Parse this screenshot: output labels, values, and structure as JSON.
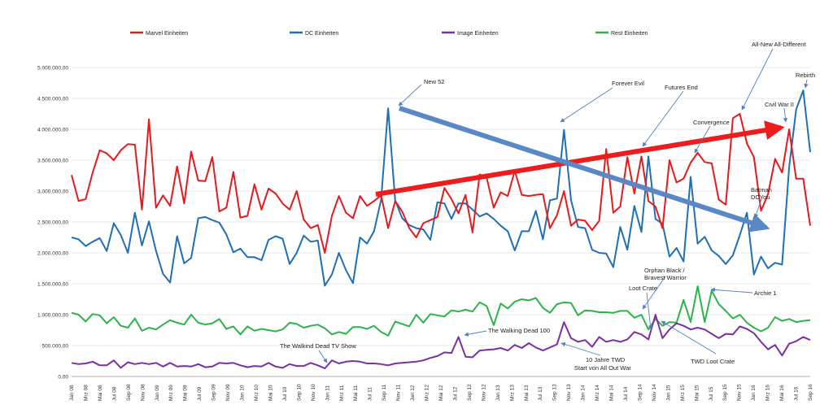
{
  "chart_data": {
    "type": "line",
    "title": "",
    "xlabel": "",
    "ylabel": "",
    "ylim": [
      0,
      5000000
    ],
    "yticks": [
      "0,00",
      "500.000,00",
      "1.000.000,00",
      "1.500.000,00",
      "2.000.000,00",
      "2.500.000,00",
      "3.000.000,00",
      "3.500.000,00",
      "4.000.000,00",
      "4.500.000,00",
      "5.000.000,00"
    ],
    "ytick_values": [
      0,
      500000,
      1000000,
      1500000,
      2000000,
      2500000,
      3000000,
      3500000,
      4000000,
      4500000,
      5000000
    ],
    "grid": "horizontal",
    "legend_position": "top",
    "x_tick_labels": [
      "Jan 08",
      "Mrz 08",
      "Mai 08",
      "Jul 08",
      "Sep 08",
      "Nov 08",
      "Jan 09",
      "Mrz 09",
      "Mai 09",
      "Jul 09",
      "Sep 09",
      "Nov 09",
      "Jan 10",
      "Mrz 10",
      "Mai 10",
      "Jul 10",
      "Sep 10",
      "Nov 10",
      "Jan 11",
      "Mrz 11",
      "Mai 11",
      "Jul 11",
      "Sep 11",
      "Nov 11",
      "Jan 12",
      "Mrz 12",
      "Mai 12",
      "Jul 12",
      "Sep 12",
      "Nov 12",
      "Jan 13",
      "Mrz 13",
      "Mai 13",
      "Jul 13",
      "Sep 13",
      "Nov 13",
      "Jan 14",
      "Mrz 14",
      "Mai 14",
      "Jul 14",
      "Sep 14",
      "Nov 14",
      "Jan 15",
      "Mrz 15",
      "Mai 15",
      "Jul 15",
      "Sep 15",
      "Nov 15",
      "Jan 16",
      "Mrz 16",
      "Mai 16",
      "Jul 16",
      "Sep 16"
    ],
    "series": [
      {
        "name": "Marvel Einheiten",
        "color": "#e41a1c",
        "values": [
          3260000,
          2840000,
          2870000,
          3300000,
          3660000,
          3610000,
          3500000,
          3660000,
          3760000,
          3750000,
          2700000,
          4160000,
          2730000,
          2930000,
          2760000,
          3400000,
          2800000,
          3640000,
          3170000,
          3160000,
          3550000,
          2670000,
          2730000,
          3310000,
          2570000,
          2600000,
          3110000,
          2700000,
          3040000,
          2960000,
          2800000,
          2700000,
          3000000,
          2540000,
          2400000,
          2450000,
          2000000,
          2600000,
          2920000,
          2650000,
          2560000,
          2920000,
          2760000,
          2840000,
          2930000,
          2400000,
          2840000,
          2670000,
          2400000,
          2250000,
          2480000,
          2530000,
          2580000,
          3050000,
          2870000,
          2640000,
          2940000,
          2330000,
          3270000,
          3220000,
          2730000,
          2980000,
          2920000,
          3330000,
          2940000,
          2920000,
          2940000,
          2950000,
          2400000,
          2610000,
          3000000,
          2440000,
          2540000,
          2520000,
          2370000,
          2520000,
          3680000,
          2650000,
          2750000,
          3550000,
          2960000,
          3560000,
          2840000,
          2750000,
          2400000,
          3500000,
          3140000,
          3200000,
          3460000,
          3620000,
          3470000,
          3450000,
          2860000,
          2780000,
          4180000,
          4250000,
          3770000,
          3550000,
          2680000,
          2950000,
          3520000,
          3300000,
          4000000,
          3200000,
          3200000,
          2440000
        ]
      },
      {
        "name": "DC Einheiten",
        "color": "#1f6fb5",
        "values": [
          2250000,
          2220000,
          2110000,
          2180000,
          2240000,
          2030000,
          2480000,
          2290000,
          2000000,
          2650000,
          2120000,
          2510000,
          2030000,
          1660000,
          1520000,
          2270000,
          1830000,
          1920000,
          2560000,
          2580000,
          2530000,
          2490000,
          2300000,
          2010000,
          2070000,
          1930000,
          1930000,
          1880000,
          2210000,
          2270000,
          2230000,
          1820000,
          2000000,
          2280000,
          2180000,
          2200000,
          1470000,
          1650000,
          2000000,
          1720000,
          1510000,
          2250000,
          2150000,
          2350000,
          2860000,
          4340000,
          2850000,
          2560000,
          2450000,
          2400000,
          2380000,
          2210000,
          2820000,
          2800000,
          2550000,
          2800000,
          2800000,
          2700000,
          2590000,
          2640000,
          2550000,
          2440000,
          2350000,
          2040000,
          2350000,
          2350000,
          2680000,
          2220000,
          2850000,
          2880000,
          3990000,
          2850000,
          2420000,
          2400000,
          2050000,
          2000000,
          1990000,
          1770000,
          2420000,
          2050000,
          2760000,
          2340000,
          3560000,
          2550000,
          2470000,
          1940000,
          2080000,
          1860000,
          3230000,
          2150000,
          2260000,
          2040000,
          1950000,
          1820000,
          1960000,
          2290000,
          2650000,
          1650000,
          1940000,
          1750000,
          1840000,
          1810000,
          3390000,
          4320000,
          4630000,
          3630000
        ]
      },
      {
        "name": "Image Einheiten",
        "color": "#7b2fa0",
        "values": [
          220000,
          200000,
          210000,
          240000,
          180000,
          180000,
          260000,
          140000,
          230000,
          200000,
          220000,
          200000,
          220000,
          160000,
          220000,
          160000,
          170000,
          160000,
          200000,
          150000,
          160000,
          220000,
          210000,
          220000,
          180000,
          150000,
          170000,
          160000,
          220000,
          160000,
          140000,
          200000,
          170000,
          170000,
          220000,
          180000,
          130000,
          260000,
          210000,
          240000,
          250000,
          240000,
          210000,
          210000,
          200000,
          180000,
          210000,
          220000,
          230000,
          240000,
          260000,
          300000,
          330000,
          390000,
          380000,
          640000,
          320000,
          310000,
          420000,
          430000,
          440000,
          460000,
          420000,
          510000,
          460000,
          540000,
          470000,
          420000,
          470000,
          520000,
          880000,
          620000,
          560000,
          590000,
          480000,
          640000,
          560000,
          590000,
          560000,
          600000,
          720000,
          680000,
          600000,
          1000000,
          620000,
          760000,
          860000,
          820000,
          760000,
          790000,
          760000,
          690000,
          620000,
          690000,
          680000,
          810000,
          770000,
          700000,
          560000,
          440000,
          510000,
          340000,
          530000,
          570000,
          640000,
          590000
        ]
      },
      {
        "name": "Rest Einheiten",
        "color": "#2db34a",
        "values": [
          1030000,
          1000000,
          890000,
          1010000,
          990000,
          860000,
          960000,
          820000,
          790000,
          940000,
          740000,
          790000,
          760000,
          840000,
          910000,
          870000,
          840000,
          1000000,
          870000,
          840000,
          860000,
          930000,
          770000,
          810000,
          680000,
          810000,
          740000,
          770000,
          750000,
          730000,
          760000,
          870000,
          850000,
          790000,
          820000,
          840000,
          780000,
          680000,
          720000,
          690000,
          800000,
          800000,
          770000,
          820000,
          720000,
          660000,
          890000,
          850000,
          810000,
          1000000,
          870000,
          1010000,
          990000,
          970000,
          1070000,
          1050000,
          1080000,
          1050000,
          1200000,
          1140000,
          830000,
          1180000,
          1100000,
          1210000,
          1250000,
          1230000,
          1270000,
          1110000,
          1030000,
          1170000,
          1200000,
          1190000,
          990000,
          1070000,
          1060000,
          1040000,
          1040000,
          1030000,
          1060000,
          1060000,
          950000,
          1000000,
          760000,
          930000,
          820000,
          880000,
          870000,
          1240000,
          880000,
          1460000,
          880000,
          1390000,
          1170000,
          1060000,
          940000,
          1000000,
          870000,
          790000,
          730000,
          790000,
          960000,
          900000,
          930000,
          880000,
          900000,
          910000
        ]
      }
    ],
    "annotations": [
      {
        "text": "New 52"
      },
      {
        "text": "Forever Evil"
      },
      {
        "text": "Futures End"
      },
      {
        "text": "All-New All-Different"
      },
      {
        "text": "Rebirth"
      },
      {
        "text": "Civil War II"
      },
      {
        "text": "Convergence"
      },
      {
        "text": "Batman"
      },
      {
        "text": "DCYou"
      },
      {
        "text": "Orphan Black /"
      },
      {
        "text": "Bravest Warrior"
      },
      {
        "text": "Loot Crate"
      },
      {
        "text": "Archie 1"
      },
      {
        "text": "TWD Loot Crate"
      },
      {
        "text": "10 Jahre TWD"
      },
      {
        "text": "Start von  All Out War"
      },
      {
        "text": "The Walking Dead 100"
      },
      {
        "text": "The Walkind Dead TV Show"
      }
    ]
  }
}
